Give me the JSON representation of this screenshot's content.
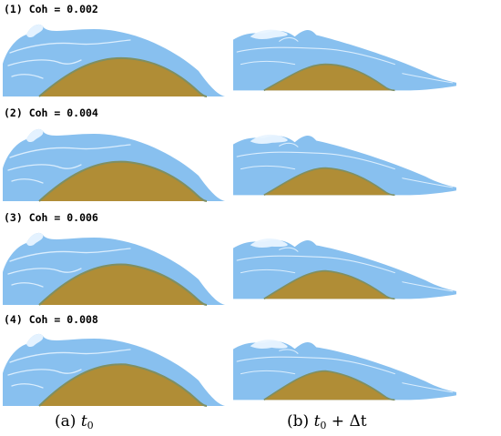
{
  "rows": [
    {
      "label": "(1) Coh = 0.002"
    },
    {
      "label": "(2) Coh = 0.004"
    },
    {
      "label": "(3) Coh = 0.006"
    },
    {
      "label": "(4) Coh = 0.008"
    }
  ],
  "captions": {
    "left_prefix": "(a) ",
    "left_var": "t",
    "left_sub": "0",
    "right_prefix": "(b) ",
    "right_var": "t",
    "right_sub": "0",
    "right_suffix": " + Δt"
  },
  "colors": {
    "water": "#88c0ef",
    "water_foam": "#e9f4ff",
    "sand": "#b08d36",
    "sand_edge": "#7e8f63",
    "background": "#ffffff"
  }
}
